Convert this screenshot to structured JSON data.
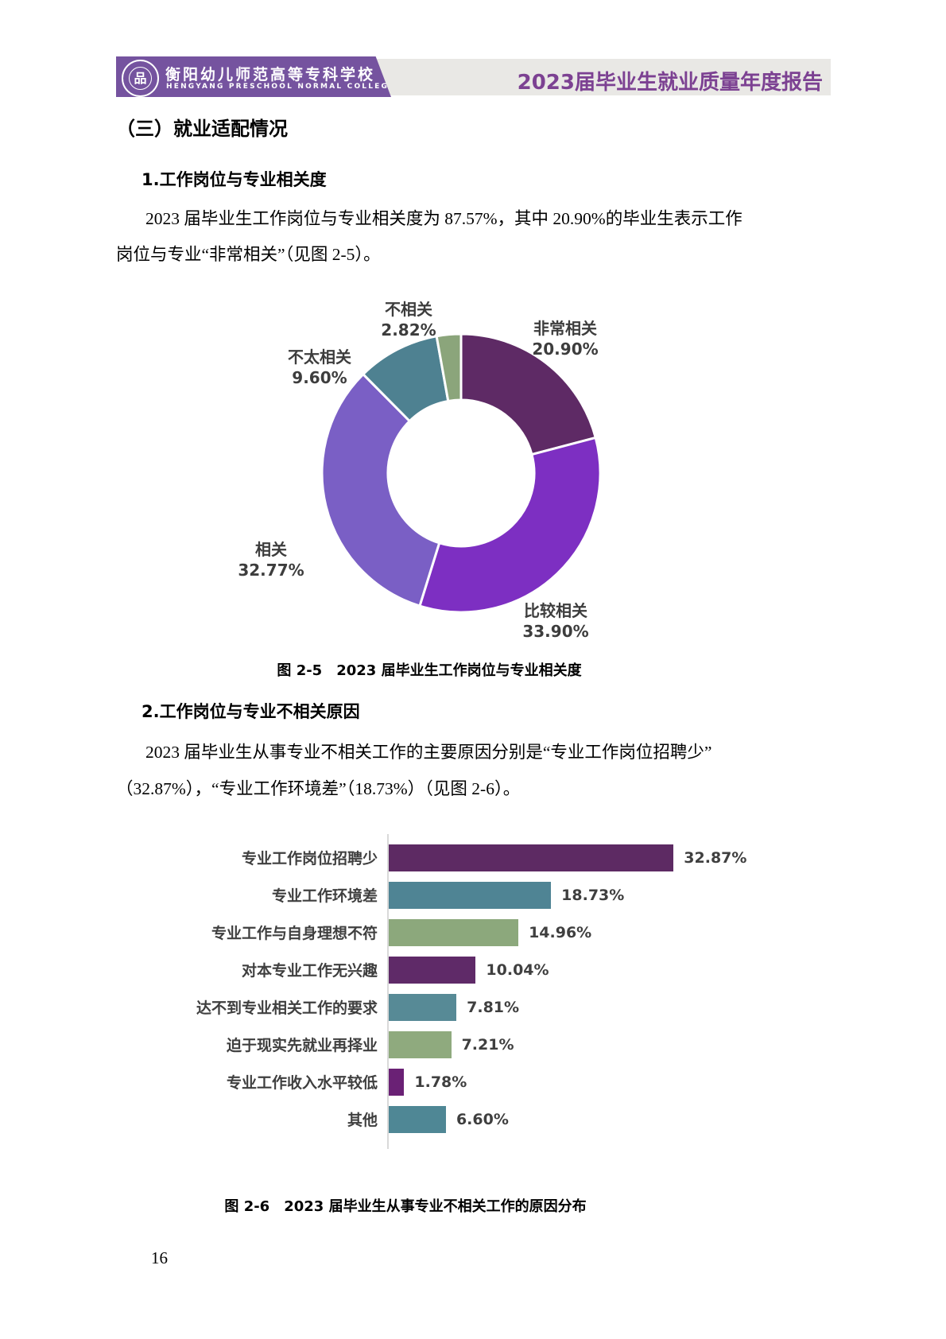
{
  "header": {
    "school_name_zh": "衡阳幼儿师范高等专科学校",
    "school_name_en": "HENGYANG PRESCHOOL NORMAL COLLEGE",
    "seal_glyph": "品",
    "report_title": "2023届毕业生就业质量年度报告",
    "banner_color": "#75539f",
    "band_color": "#e9e8e5",
    "title_color": "#7c4192"
  },
  "section": {
    "heading": "（三）就业适配情况",
    "sub1_heading": "1.工作岗位与专业相关度",
    "para1_line1": "2023 届毕业生工作岗位与专业相关度为 87.57%，其中 20.90%的毕业生表示工作",
    "para1_line2": "岗位与专业“非常相关”（见图 2-5）。",
    "sub2_heading": "2.工作岗位与专业不相关原因",
    "para2_line1": "2023 届毕业生从事专业不相关工作的主要原因分别是“专业工作岗位招聘少”",
    "para2_line2": "（32.87%），“专业工作环境差”（18.73%）（见图 2-6）。"
  },
  "figure5_caption": "图 2-5　2023 届毕业生工作岗位与专业相关度",
  "figure6_caption": "图 2-6　2023 届毕业生从事专业不相关工作的原因分布",
  "page_number": "16",
  "chart_data": [
    {
      "type": "pie",
      "subtype": "donut",
      "title": "图 2-5 2023届毕业生工作岗位与专业相关度",
      "start_angle_deg": 0,
      "direction": "clockwise",
      "categories": [
        "非常相关",
        "比较相关",
        "相关",
        "不太相关",
        "不相关"
      ],
      "values": [
        20.9,
        33.9,
        32.77,
        9.6,
        2.82
      ],
      "value_labels": [
        "20.90%",
        "33.90%",
        "32.77%",
        "9.60%",
        "2.82%"
      ],
      "colors": [
        "#5e2a65",
        "#7d2fc2",
        "#7a5fc5",
        "#4e8191",
        "#8ba57b"
      ],
      "label_text_color": "#3d3d3d",
      "legend": "none"
    },
    {
      "type": "bar",
      "orientation": "horizontal",
      "title": "图 2-6 2023届毕业生从事专业不相关工作的原因分布",
      "categories": [
        "专业工作岗位招聘少",
        "专业工作环境差",
        "专业工作与自身理想不符",
        "对本专业工作无兴趣",
        "达不到专业相关工作的要求",
        "迫于现实先就业再择业",
        "专业工作收入水平较低",
        "其他"
      ],
      "values": [
        32.87,
        18.73,
        14.96,
        10.04,
        7.81,
        7.21,
        1.78,
        6.6
      ],
      "value_labels": [
        "32.87%",
        "18.73%",
        "14.96%",
        "10.04%",
        "7.81%",
        "7.21%",
        "1.78%",
        "6.60%"
      ],
      "bar_colors": [
        "#5d2a63",
        "#4f8494",
        "#8ca87c",
        "#5f2a68",
        "#578a96",
        "#8faa7e",
        "#6a2175",
        "#4f8795"
      ],
      "axis_line_color": "#d9d9d9",
      "xlim": [
        0,
        36
      ],
      "grid": false,
      "legend": "none"
    }
  ]
}
